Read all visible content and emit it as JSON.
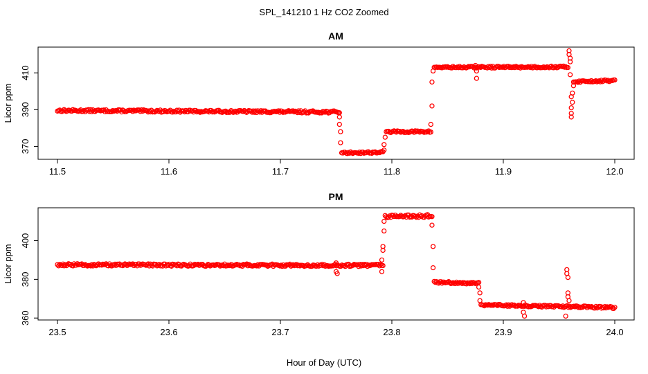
{
  "figure": {
    "title": "SPL_141210  1 Hz CO2 Zoomed",
    "xlabel": "Hour of Day (UTC)"
  },
  "chart_data": [
    {
      "type": "scatter",
      "title": "AM",
      "xlabel": "",
      "ylabel": "Licor ppm",
      "xlim": [
        11.5,
        12.0
      ],
      "ylim": [
        363,
        424
      ],
      "xticks": [
        "11.5",
        "11.6",
        "11.7",
        "11.8",
        "11.9",
        "12.0"
      ],
      "xtick_values": [
        11.5,
        11.6,
        11.7,
        11.8,
        11.9,
        12.0
      ],
      "yticks": [
        "370",
        "390",
        "410"
      ],
      "ytick_values": [
        370,
        390,
        410
      ],
      "grid": false,
      "marker": "open-circle",
      "color": "#ff0000",
      "segments": [
        {
          "x_start": 11.5,
          "x_end": 11.753,
          "y_start": 389.5,
          "y_end": 388.7,
          "noise": 0.6
        },
        {
          "x_start": 11.755,
          "x_end": 11.792,
          "y_start": 366.5,
          "y_end": 366.8,
          "noise": 0.5
        },
        {
          "x_start": 11.795,
          "x_end": 11.835,
          "y_start": 378.0,
          "y_end": 378.0,
          "noise": 0.5
        },
        {
          "x_start": 11.838,
          "x_end": 11.958,
          "y_start": 413.0,
          "y_end": 413.2,
          "noise": 0.5
        },
        {
          "x_start": 11.963,
          "x_end": 12.0,
          "y_start": 405.2,
          "y_end": 405.8,
          "noise": 0.5
        }
      ],
      "points": [
        {
          "x": 11.753,
          "y": 386
        },
        {
          "x": 11.753,
          "y": 382
        },
        {
          "x": 11.754,
          "y": 378
        },
        {
          "x": 11.754,
          "y": 372
        },
        {
          "x": 11.793,
          "y": 368
        },
        {
          "x": 11.793,
          "y": 371
        },
        {
          "x": 11.794,
          "y": 375
        },
        {
          "x": 11.835,
          "y": 382
        },
        {
          "x": 11.836,
          "y": 392
        },
        {
          "x": 11.836,
          "y": 405
        },
        {
          "x": 11.837,
          "y": 411
        },
        {
          "x": 11.875,
          "y": 414
        },
        {
          "x": 11.876,
          "y": 411
        },
        {
          "x": 11.876,
          "y": 407
        },
        {
          "x": 11.959,
          "y": 422
        },
        {
          "x": 11.959,
          "y": 420
        },
        {
          "x": 11.96,
          "y": 418
        },
        {
          "x": 11.96,
          "y": 416
        },
        {
          "x": 11.96,
          "y": 409
        },
        {
          "x": 11.961,
          "y": 397
        },
        {
          "x": 11.961,
          "y": 391
        },
        {
          "x": 11.961,
          "y": 388
        },
        {
          "x": 11.961,
          "y": 386
        },
        {
          "x": 11.962,
          "y": 394
        },
        {
          "x": 11.962,
          "y": 399
        },
        {
          "x": 11.963,
          "y": 403
        }
      ]
    },
    {
      "type": "scatter",
      "title": "PM",
      "xlabel": "",
      "ylabel": "Licor ppm",
      "xlim": [
        23.5,
        24.0
      ],
      "ylim": [
        359,
        417
      ],
      "xticks": [
        "23.5",
        "23.6",
        "23.7",
        "23.8",
        "23.9",
        "24.0"
      ],
      "xtick_values": [
        23.5,
        23.6,
        23.7,
        23.8,
        23.9,
        24.0
      ],
      "yticks": [
        "360",
        "380",
        "400"
      ],
      "ytick_values": [
        360,
        380,
        400
      ],
      "grid": false,
      "marker": "open-circle",
      "color": "#ff0000",
      "segments": [
        {
          "x_start": 23.5,
          "x_end": 23.792,
          "y_start": 387.5,
          "y_end": 387.2,
          "noise": 0.6
        },
        {
          "x_start": 23.794,
          "x_end": 23.836,
          "y_start": 412.5,
          "y_end": 412.8,
          "noise": 0.7
        },
        {
          "x_start": 23.838,
          "x_end": 23.878,
          "y_start": 378.5,
          "y_end": 378.0,
          "noise": 0.5
        },
        {
          "x_start": 23.88,
          "x_end": 24.0,
          "y_start": 366.8,
          "y_end": 365.4,
          "noise": 0.5
        }
      ],
      "points": [
        {
          "x": 23.75,
          "y": 388.5
        },
        {
          "x": 23.75,
          "y": 384
        },
        {
          "x": 23.751,
          "y": 383
        },
        {
          "x": 23.791,
          "y": 384
        },
        {
          "x": 23.791,
          "y": 390
        },
        {
          "x": 23.792,
          "y": 395
        },
        {
          "x": 23.792,
          "y": 397
        },
        {
          "x": 23.793,
          "y": 405
        },
        {
          "x": 23.793,
          "y": 410
        },
        {
          "x": 23.836,
          "y": 408
        },
        {
          "x": 23.837,
          "y": 397
        },
        {
          "x": 23.837,
          "y": 386
        },
        {
          "x": 23.878,
          "y": 376
        },
        {
          "x": 23.879,
          "y": 373
        },
        {
          "x": 23.879,
          "y": 369
        },
        {
          "x": 23.918,
          "y": 368
        },
        {
          "x": 23.918,
          "y": 363
        },
        {
          "x": 23.919,
          "y": 361
        },
        {
          "x": 23.957,
          "y": 385
        },
        {
          "x": 23.957,
          "y": 383
        },
        {
          "x": 23.958,
          "y": 381
        },
        {
          "x": 23.958,
          "y": 373
        },
        {
          "x": 23.958,
          "y": 371
        },
        {
          "x": 23.959,
          "y": 369
        },
        {
          "x": 23.956,
          "y": 361
        }
      ]
    }
  ]
}
